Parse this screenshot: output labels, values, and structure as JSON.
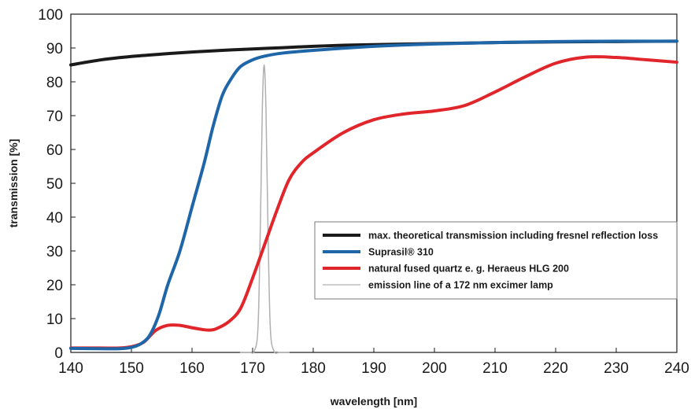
{
  "chart_data": {
    "type": "line",
    "title": "",
    "xlabel": "wavelength [nm]",
    "ylabel": "transmission [%]",
    "xlim": [
      140,
      240
    ],
    "ylim": [
      0,
      100
    ],
    "x_ticks": [
      140,
      150,
      160,
      170,
      180,
      190,
      200,
      210,
      220,
      230,
      240
    ],
    "y_ticks": [
      0,
      10,
      20,
      30,
      40,
      50,
      60,
      70,
      80,
      90,
      100
    ],
    "grid": false,
    "legend_position": "bottom-right",
    "series": [
      {
        "name": "max. theoretical transmission including fresnel reflection loss",
        "color": "#1a1a1a",
        "stroke_width": 4,
        "points": [
          [
            140,
            85
          ],
          [
            145,
            86.5
          ],
          [
            150,
            87.5
          ],
          [
            155,
            88.2
          ],
          [
            160,
            88.8
          ],
          [
            165,
            89.3
          ],
          [
            170,
            89.7
          ],
          [
            175,
            90.1
          ],
          [
            180,
            90.5
          ],
          [
            185,
            90.8
          ],
          [
            190,
            91.0
          ],
          [
            200,
            91.3
          ],
          [
            210,
            91.6
          ],
          [
            220,
            91.8
          ],
          [
            230,
            91.9
          ],
          [
            240,
            92.0
          ]
        ]
      },
      {
        "name": "Suprasil® 310",
        "color": "#1f66a8",
        "stroke_width": 4,
        "points": [
          [
            140,
            1.2
          ],
          [
            145,
            1.1
          ],
          [
            148,
            1.1
          ],
          [
            150,
            1.5
          ],
          [
            151.5,
            2.5
          ],
          [
            153,
            5
          ],
          [
            154.5,
            11
          ],
          [
            156,
            20
          ],
          [
            158,
            30
          ],
          [
            160,
            43
          ],
          [
            162,
            56
          ],
          [
            163.5,
            67
          ],
          [
            165,
            76
          ],
          [
            166.5,
            81
          ],
          [
            168,
            84.5
          ],
          [
            170,
            86.5
          ],
          [
            172,
            87.6
          ],
          [
            175,
            88.5
          ],
          [
            180,
            89.3
          ],
          [
            190,
            90.5
          ],
          [
            200,
            91.2
          ],
          [
            210,
            91.6
          ],
          [
            220,
            91.9
          ],
          [
            230,
            92.0
          ],
          [
            240,
            92.0
          ]
        ]
      },
      {
        "name": "natural fused quartz e. g. Heraeus HLG 200",
        "color": "#e0252b",
        "stroke_width": 4,
        "points": [
          [
            140,
            1.3
          ],
          [
            145,
            1.3
          ],
          [
            148,
            1.3
          ],
          [
            150,
            1.7
          ],
          [
            152,
            3
          ],
          [
            154,
            6.5
          ],
          [
            156,
            8
          ],
          [
            158,
            8
          ],
          [
            160,
            7.3
          ],
          [
            162,
            6.7
          ],
          [
            163,
            6.6
          ],
          [
            164,
            7
          ],
          [
            166,
            9
          ],
          [
            168,
            13
          ],
          [
            170,
            22
          ],
          [
            172,
            32
          ],
          [
            174,
            42
          ],
          [
            176,
            51
          ],
          [
            178,
            56
          ],
          [
            180,
            59
          ],
          [
            185,
            65
          ],
          [
            190,
            68.8
          ],
          [
            195,
            70.5
          ],
          [
            200,
            71.4
          ],
          [
            205,
            73
          ],
          [
            210,
            77
          ],
          [
            215,
            81.5
          ],
          [
            220,
            85.5
          ],
          [
            225,
            87.3
          ],
          [
            230,
            87.2
          ],
          [
            235,
            86.5
          ],
          [
            240,
            85.8
          ]
        ]
      },
      {
        "name": "emission line of a 172 nm excimer lamp",
        "color": "#b0b0b0",
        "stroke_width": 1.5,
        "points": [
          [
            168,
            0
          ],
          [
            169.5,
            0
          ],
          [
            170.3,
            0.5
          ],
          [
            170.9,
            8
          ],
          [
            171.3,
            40
          ],
          [
            171.6,
            72
          ],
          [
            171.9,
            85
          ],
          [
            172.2,
            72
          ],
          [
            172.5,
            40
          ],
          [
            172.9,
            8
          ],
          [
            173.5,
            0.5
          ],
          [
            174.5,
            0
          ],
          [
            176,
            0
          ]
        ]
      }
    ]
  }
}
